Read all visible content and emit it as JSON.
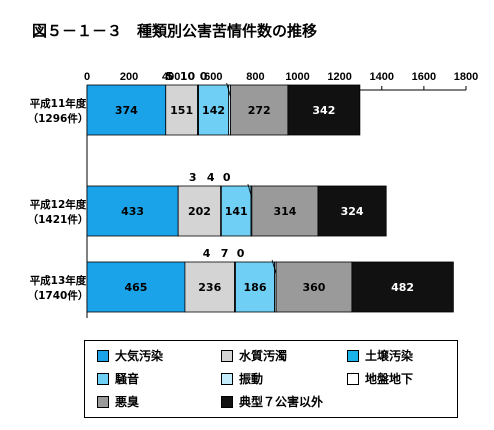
{
  "title": "図５－１－３　種類別公害苦情件数の推移",
  "chart_data": {
    "type": "bar",
    "orientation": "horizontal",
    "stacked": true,
    "title": "図５－１－３　種類別公害苦情件数の推移",
    "xlim": [
      0,
      1800
    ],
    "xticks": [
      0,
      200,
      400,
      600,
      800,
      1000,
      1200,
      1400,
      1600,
      1800
    ],
    "grid": false,
    "categories": [
      {
        "year": "平成11年度",
        "total": "（1296件）"
      },
      {
        "year": "平成12年度",
        "total": "（1421件）"
      },
      {
        "year": "平成13年度",
        "total": "（1740件）"
      }
    ],
    "series": [
      {
        "name": "大気汚染",
        "color": "#1aa3e8",
        "values": [
          374,
          433,
          465
        ]
      },
      {
        "name": "水質汚濁",
        "color": "#d4d4d4",
        "values": [
          151,
          202,
          236
        ]
      },
      {
        "name": "土壌汚染",
        "color": "#1ab4ec",
        "values": [
          5,
          3,
          4
        ]
      },
      {
        "name": "騒音",
        "color": "#6fcff5",
        "values": [
          142,
          141,
          186
        ]
      },
      {
        "name": "振動",
        "color": "#c4ecfb",
        "values": [
          10,
          4,
          7
        ]
      },
      {
        "name": "地盤地下",
        "color": "#ffffff",
        "values": [
          0,
          0,
          0
        ]
      },
      {
        "name": "悪臭",
        "color": "#9a9a9a",
        "values": [
          272,
          314,
          360
        ]
      },
      {
        "name": "典型７公害以外",
        "color": "#111111",
        "values": [
          342,
          324,
          482
        ]
      }
    ],
    "small_labels": [
      [
        "5",
        "10",
        "0"
      ],
      [
        "3",
        "4",
        "0"
      ],
      [
        "4",
        "7",
        "0"
      ]
    ]
  }
}
